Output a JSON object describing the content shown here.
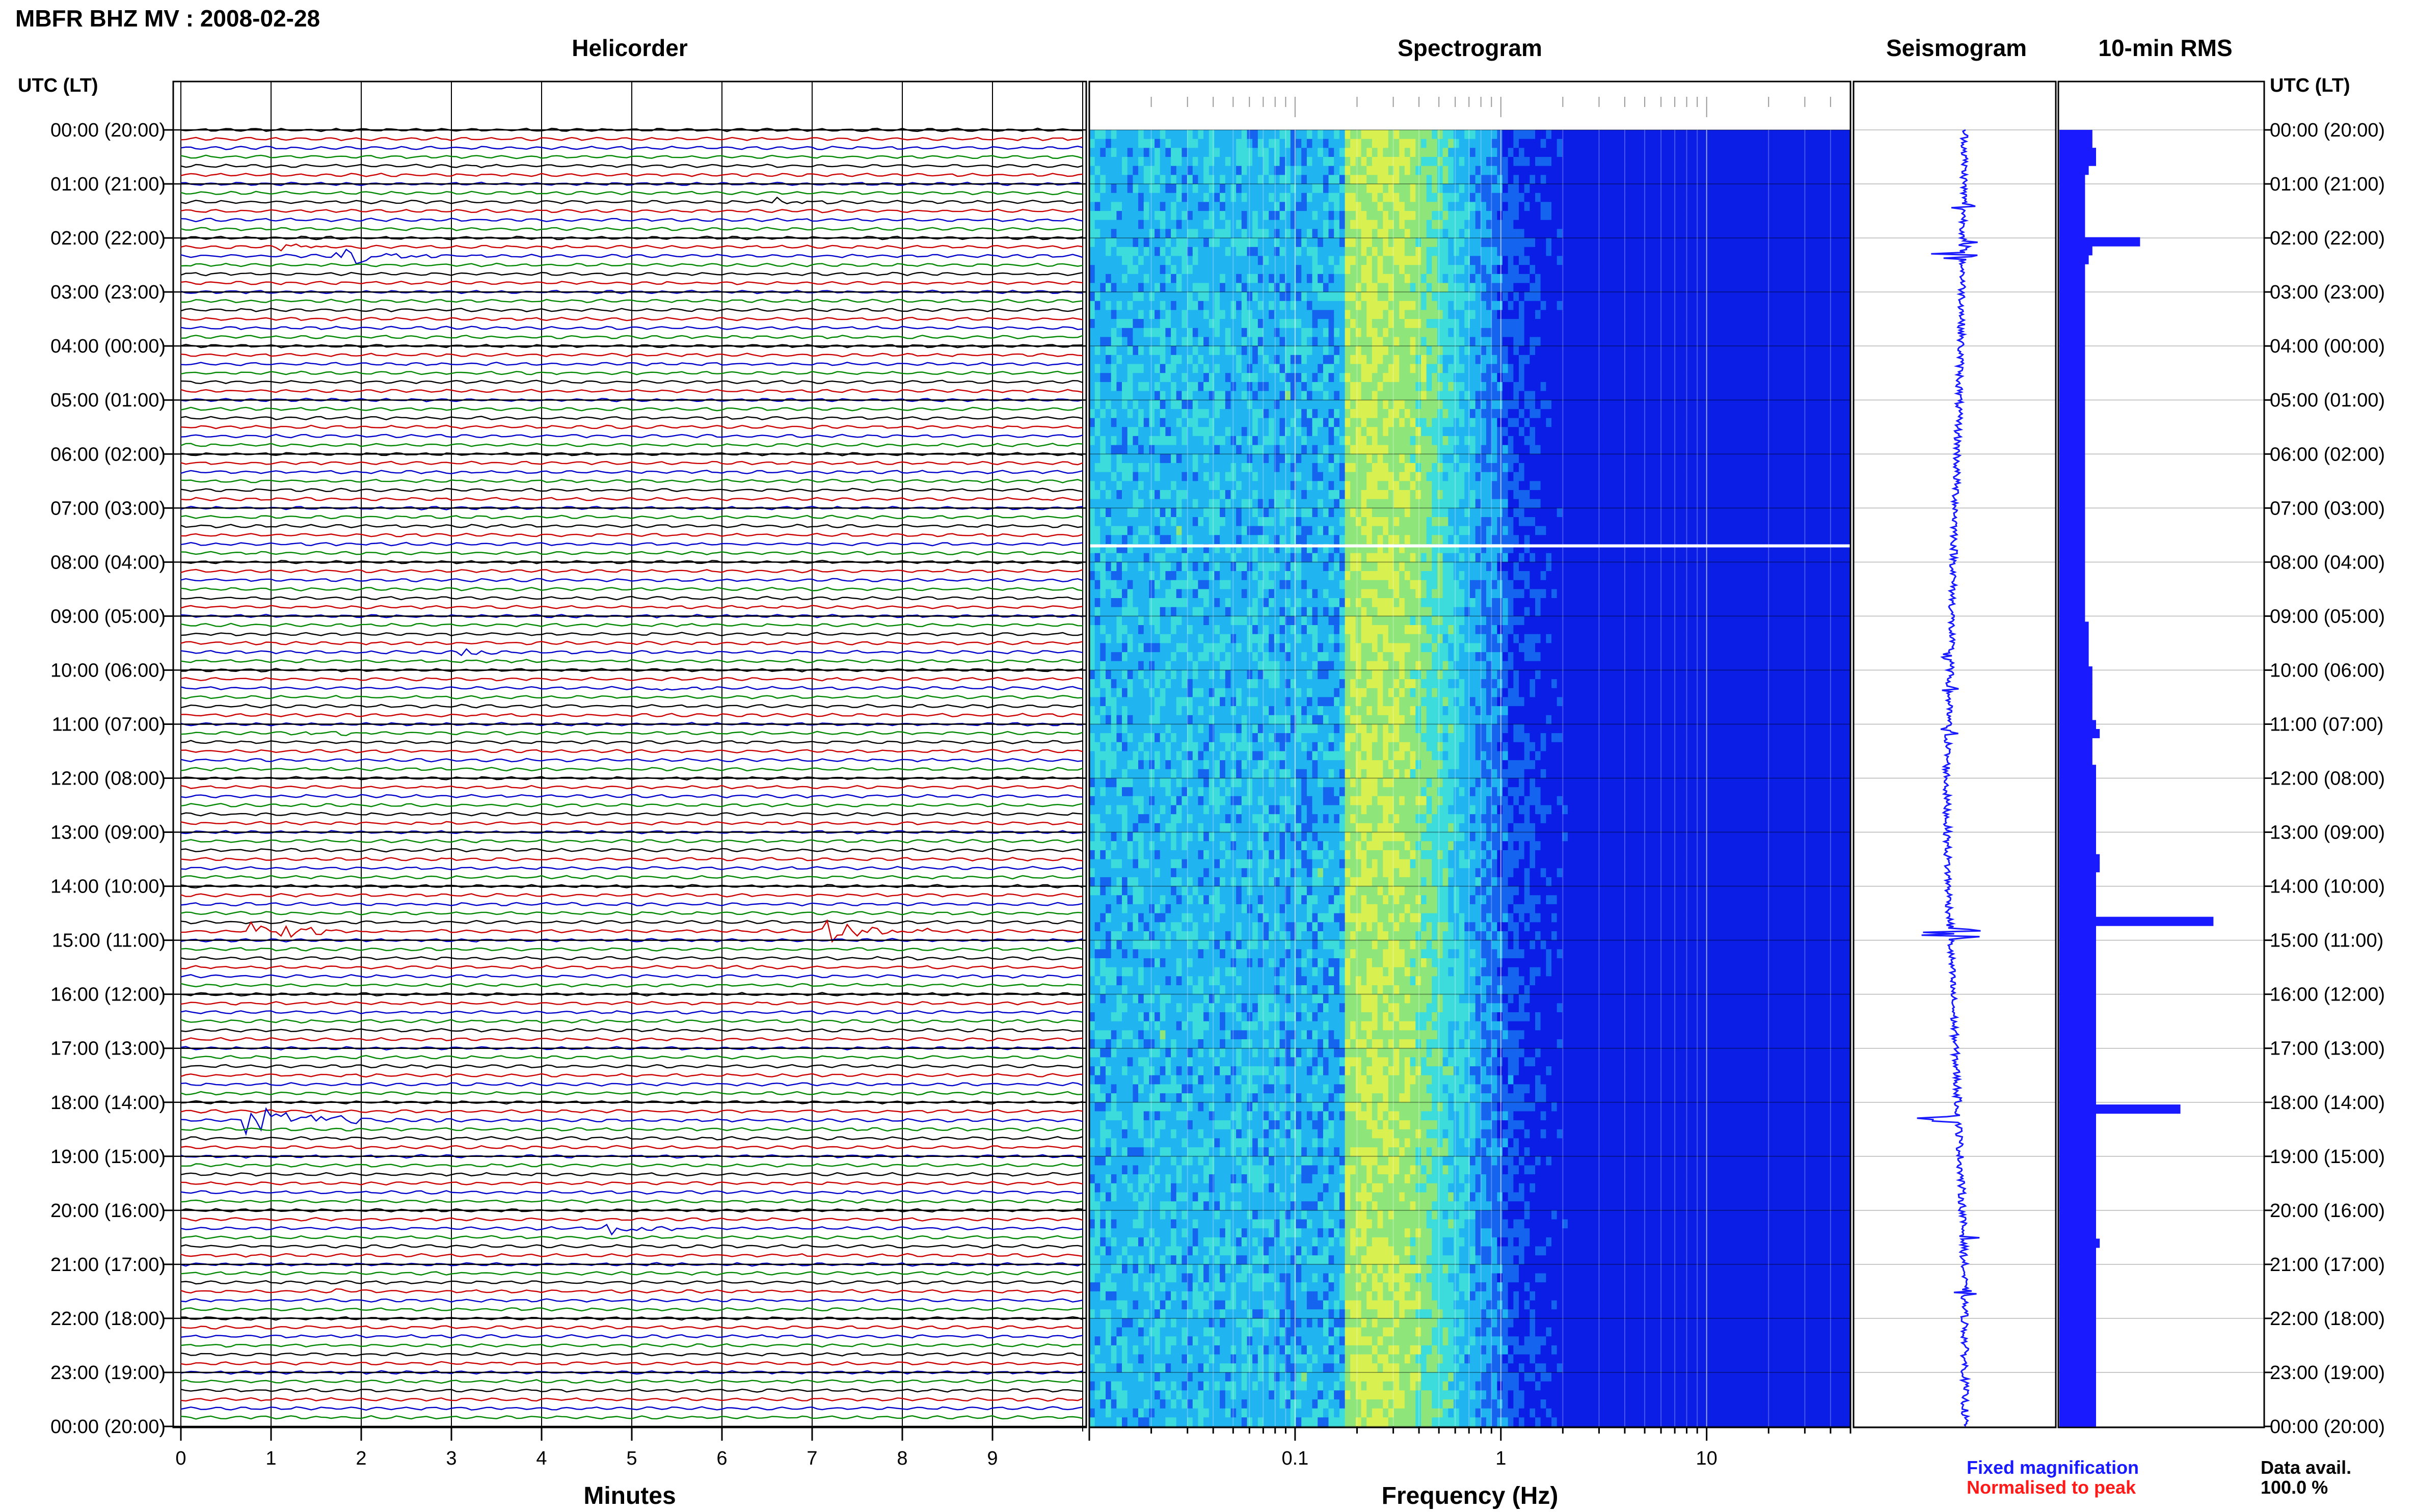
{
  "header": {
    "title": "MBFR BHZ MV : 2008-02-28"
  },
  "panels": {
    "helicorder": "Helicorder",
    "spectrogram": "Spectrogram",
    "seismogram": "Seismogram",
    "rms": "10-min RMS"
  },
  "axes": {
    "left_label": "UTC (LT)",
    "right_label": "UTC (LT)",
    "helicorder_xlabel": "Minutes",
    "spectrogram_xlabel": "Frequency (Hz)"
  },
  "legend": {
    "fixed": "Fixed magnification",
    "normalised": "Normalised to peak",
    "fixed_color": "#1a1aff",
    "normalised_color": "#ff1a1a",
    "data_avail_label": "Data avail.",
    "data_avail_value": "100.0 %"
  },
  "chart_data": {
    "type": "helicorder-spectrogram",
    "time_labels": [
      "00:00 (20:00)",
      "01:00 (21:00)",
      "02:00 (22:00)",
      "03:00 (23:00)",
      "04:00 (00:00)",
      "05:00 (01:00)",
      "06:00 (02:00)",
      "07:00 (03:00)",
      "08:00 (04:00)",
      "09:00 (05:00)",
      "10:00 (06:00)",
      "11:00 (07:00)",
      "12:00 (08:00)",
      "13:00 (09:00)",
      "14:00 (10:00)",
      "15:00 (11:00)",
      "16:00 (12:00)",
      "17:00 (13:00)",
      "18:00 (14:00)",
      "19:00 (15:00)",
      "20:00 (16:00)",
      "21:00 (17:00)",
      "22:00 (18:00)",
      "23:00 (19:00)",
      "00:00 (20:00)"
    ],
    "minute_ticks": [
      "0",
      "1",
      "2",
      "3",
      "4",
      "5",
      "6",
      "7",
      "8",
      "9"
    ],
    "freq_ticks": [
      "0.1",
      "1",
      "10"
    ],
    "freq_range_hz": [
      0.01,
      50
    ],
    "minute_range": [
      0,
      10
    ],
    "trace_colors": [
      "#000000",
      "#cc0000",
      "#0000cc",
      "#008800"
    ],
    "spectrogram_colors": [
      "#0a1ee6",
      "#1464f0",
      "#20b4f0",
      "#3cdcdc",
      "#8ee67a",
      "#d8f050"
    ],
    "events": [
      {
        "hour": 1.3,
        "minute": 6.7,
        "amplitude": 0.7
      },
      {
        "hour": 2.1,
        "minute": 1.2,
        "amplitude": 0.6
      },
      {
        "hour": 2.3,
        "minute": 1.8,
        "amplitude": 1.4
      },
      {
        "hour": 9.7,
        "minute": 3.2,
        "amplitude": 0.6
      },
      {
        "hour": 10.3,
        "minute": 5.4,
        "amplitude": 0.5
      },
      {
        "hour": 11.1,
        "minute": 1.5,
        "amplitude": 0.7
      },
      {
        "hour": 14.8,
        "minute": 0.85,
        "amplitude": 1.5
      },
      {
        "hour": 14.8,
        "minute": 7.2,
        "amplitude": 1.6
      },
      {
        "hour": 18.3,
        "minute": 0.8,
        "amplitude": 2.0
      },
      {
        "hour": 20.4,
        "minute": 4.8,
        "amplitude": 0.9
      },
      {
        "hour": 21.5,
        "minute": 1.8,
        "amplitude": 0.5
      }
    ],
    "rms_values": [
      0.9,
      0.9,
      1.0,
      1.0,
      0.8,
      0.7,
      0.7,
      0.7,
      0.7,
      0.7,
      0.7,
      0.7,
      2.2,
      0.9,
      0.8,
      0.7,
      0.7,
      0.7,
      0.7,
      0.7,
      0.7,
      0.7,
      0.7,
      0.7,
      0.7,
      0.7,
      0.7,
      0.7,
      0.7,
      0.7,
      0.7,
      0.7,
      0.7,
      0.7,
      0.7,
      0.7,
      0.7,
      0.7,
      0.7,
      0.7,
      0.7,
      0.7,
      0.7,
      0.7,
      0.7,
      0.7,
      0.7,
      0.7,
      0.7,
      0.7,
      0.7,
      0.7,
      0.7,
      0.7,
      0.7,
      0.8,
      0.8,
      0.8,
      0.8,
      0.8,
      0.9,
      0.9,
      0.9,
      0.9,
      0.9,
      0.9,
      1.0,
      1.1,
      0.9,
      0.9,
      0.9,
      1.0,
      1.0,
      1.0,
      1.0,
      1.0,
      1.0,
      1.0,
      1.0,
      1.0,
      1.0,
      1.1,
      1.1,
      1.0,
      1.0,
      1.0,
      1.0,
      1.0,
      4.2,
      1.0,
      1.0,
      1.0,
      1.0,
      1.0,
      1.0,
      1.0,
      1.0,
      1.0,
      1.0,
      1.0,
      1.0,
      1.0,
      1.0,
      1.0,
      1.0,
      1.0,
      1.0,
      1.0,
      1.0,
      3.3,
      1.0,
      1.0,
      1.0,
      1.0,
      1.0,
      1.0,
      1.0,
      1.0,
      1.0,
      1.0,
      1.0,
      1.0,
      1.0,
      1.0,
      1.1,
      1.0,
      1.0,
      1.0,
      1.0,
      1.0,
      1.0,
      1.0,
      1.0,
      1.0,
      1.0,
      1.0,
      1.0,
      1.0,
      1.0,
      1.0,
      1.0,
      1.0,
      1.0,
      1.0,
      1.0
    ],
    "seismogram_drift": [
      0.0,
      -0.02,
      -0.05,
      -0.1,
      -0.15,
      -0.2,
      -0.25,
      -0.3,
      -0.28,
      -0.22,
      -0.15,
      -0.08,
      -0.02,
      0.0,
      0.0
    ]
  }
}
